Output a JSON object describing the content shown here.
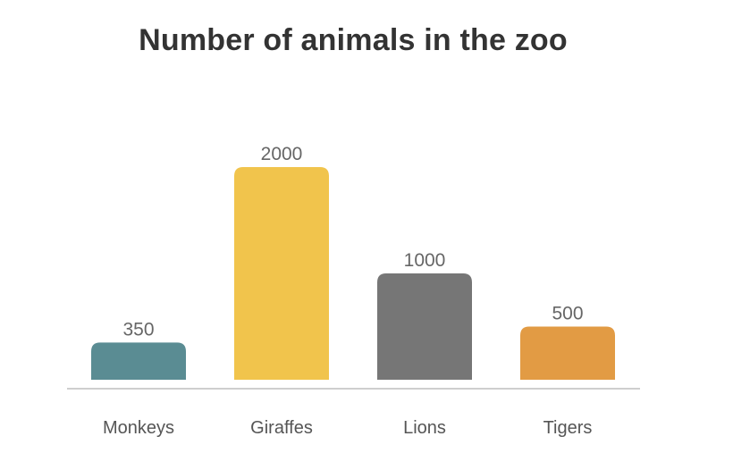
{
  "chart_data": {
    "type": "bar",
    "title": "Number of animals in the zoo",
    "categories": [
      "Monkeys",
      "Giraffes",
      "Lions",
      "Tigers"
    ],
    "values": [
      350,
      2000,
      1000,
      500
    ],
    "colors": [
      "#5a8c93",
      "#f1c44c",
      "#767676",
      "#e29b44"
    ],
    "xlabel": "",
    "ylabel": "",
    "ylim": [
      0,
      2000
    ],
    "grid": false,
    "legend": "none",
    "data_labels": true
  }
}
